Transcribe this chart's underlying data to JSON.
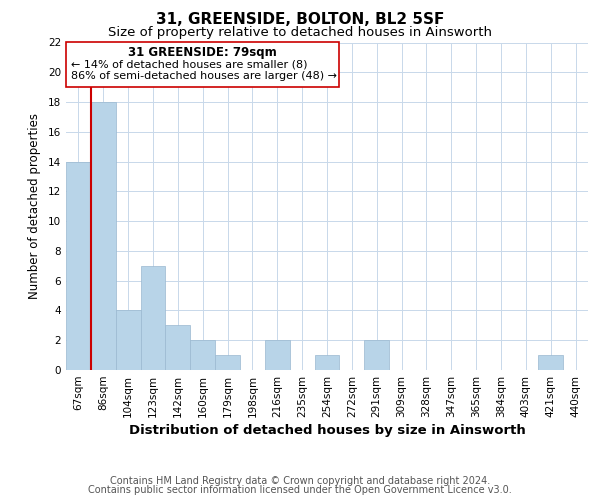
{
  "title": "31, GREENSIDE, BOLTON, BL2 5SF",
  "subtitle": "Size of property relative to detached houses in Ainsworth",
  "xlabel": "Distribution of detached houses by size in Ainsworth",
  "ylabel": "Number of detached properties",
  "categories": [
    "67sqm",
    "86sqm",
    "104sqm",
    "123sqm",
    "142sqm",
    "160sqm",
    "179sqm",
    "198sqm",
    "216sqm",
    "235sqm",
    "254sqm",
    "272sqm",
    "291sqm",
    "309sqm",
    "328sqm",
    "347sqm",
    "365sqm",
    "384sqm",
    "403sqm",
    "421sqm",
    "440sqm"
  ],
  "values": [
    14,
    18,
    4,
    7,
    3,
    2,
    1,
    0,
    2,
    0,
    1,
    0,
    2,
    0,
    0,
    0,
    0,
    0,
    0,
    1,
    0
  ],
  "bar_color": "#b8d4e8",
  "bar_edge_color": "#9ab8d0",
  "highlight_color": "#cc0000",
  "highlight_bar_index": 0,
  "ylim": [
    0,
    22
  ],
  "yticks": [
    0,
    2,
    4,
    6,
    8,
    10,
    12,
    14,
    16,
    18,
    20,
    22
  ],
  "annotation_title": "31 GREENSIDE: 79sqm",
  "annotation_line1": "← 14% of detached houses are smaller (8)",
  "annotation_line2": "86% of semi-detached houses are larger (48) →",
  "footer_line1": "Contains HM Land Registry data © Crown copyright and database right 2024.",
  "footer_line2": "Contains public sector information licensed under the Open Government Licence v3.0.",
  "background_color": "#ffffff",
  "grid_color": "#c8d8ea",
  "title_fontsize": 11,
  "subtitle_fontsize": 9.5,
  "xlabel_fontsize": 9.5,
  "ylabel_fontsize": 8.5,
  "tick_fontsize": 7.5,
  "footer_fontsize": 7,
  "annotation_title_fontsize": 8.5,
  "annotation_text_fontsize": 8
}
